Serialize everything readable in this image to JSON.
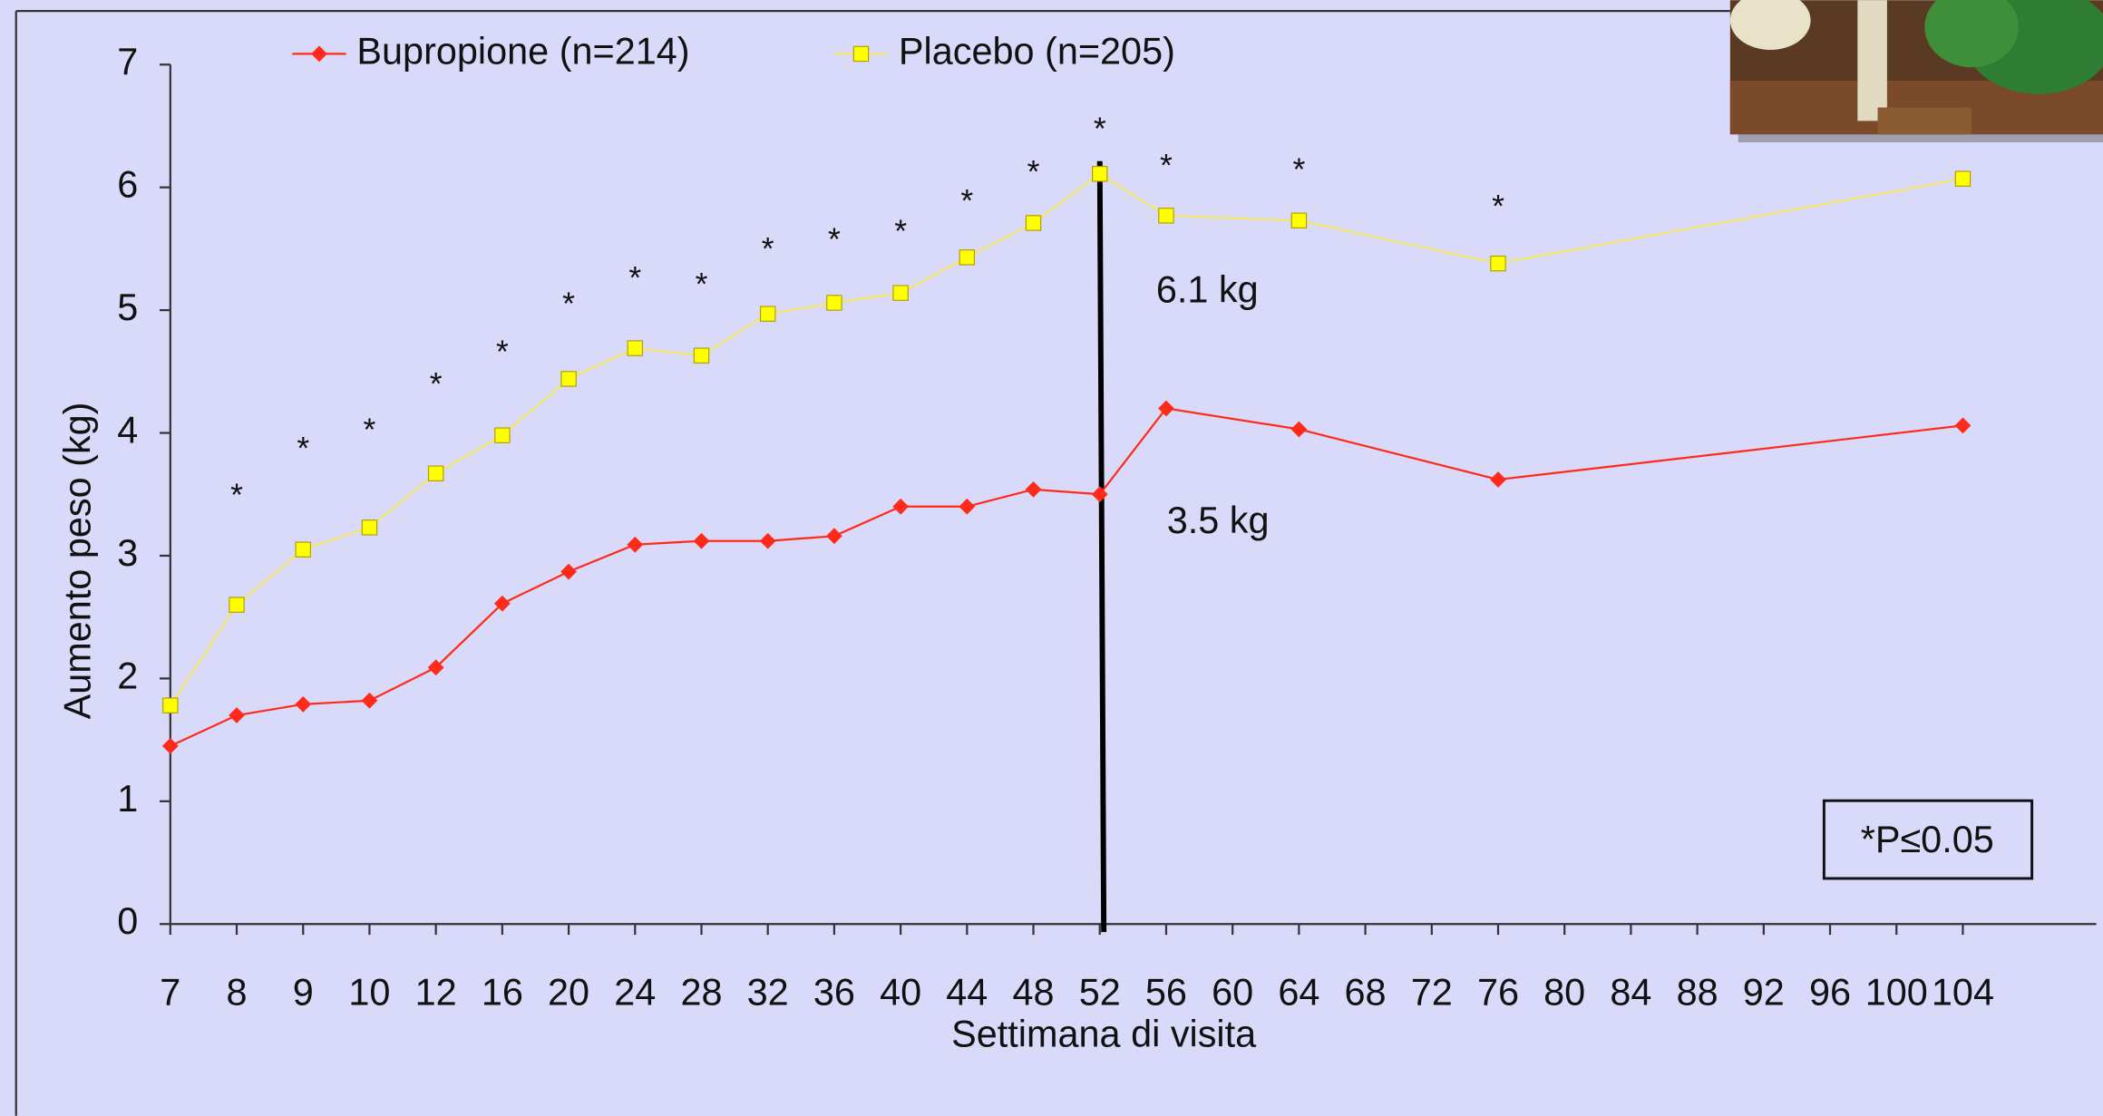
{
  "chart_data": {
    "type": "line",
    "y_label": "Aumento peso (kg)",
    "x_label": "Settimana di visita",
    "categories": [
      7,
      8,
      9,
      10,
      12,
      16,
      20,
      24,
      28,
      32,
      36,
      40,
      44,
      48,
      52,
      56,
      60,
      64,
      68,
      72,
      76,
      80,
      84,
      88,
      92,
      96,
      100,
      104
    ],
    "ylim": [
      0,
      7
    ],
    "yticks": [
      0,
      1,
      2,
      3,
      4,
      5,
      6,
      7
    ],
    "series": [
      {
        "name": "Bupropione (n=214)",
        "color": "#ff2a1a",
        "marker": "diamond",
        "x": [
          7,
          8,
          9,
          10,
          12,
          16,
          20,
          24,
          28,
          32,
          36,
          40,
          44,
          48,
          52,
          56,
          64,
          76,
          104
        ],
        "values": [
          1.45,
          1.7,
          1.79,
          1.82,
          2.09,
          2.61,
          2.87,
          3.09,
          3.12,
          3.12,
          3.16,
          3.4,
          3.4,
          3.54,
          3.5,
          4.2,
          4.03,
          3.62,
          4.06
        ]
      },
      {
        "name": "Placebo (n=205)",
        "color": "#ffff00",
        "marker": "square",
        "x": [
          7,
          8,
          9,
          10,
          12,
          16,
          20,
          24,
          28,
          32,
          36,
          40,
          44,
          48,
          52,
          56,
          64,
          76,
          104
        ],
        "values": [
          1.78,
          2.6,
          3.05,
          3.23,
          3.67,
          3.98,
          4.44,
          4.69,
          4.63,
          4.97,
          5.06,
          5.14,
          5.43,
          5.71,
          6.11,
          5.77,
          5.73,
          5.38,
          6.07
        ]
      }
    ],
    "reference_line_x": 52,
    "significance": {
      "label": "*",
      "x": [
        8,
        9,
        10,
        12,
        16,
        20,
        24,
        28,
        32,
        36,
        40,
        44,
        48,
        52,
        56,
        64,
        76
      ]
    },
    "annotations": [
      "6.1 kg",
      "3.5 kg"
    ],
    "note": "*P≤0.05"
  }
}
